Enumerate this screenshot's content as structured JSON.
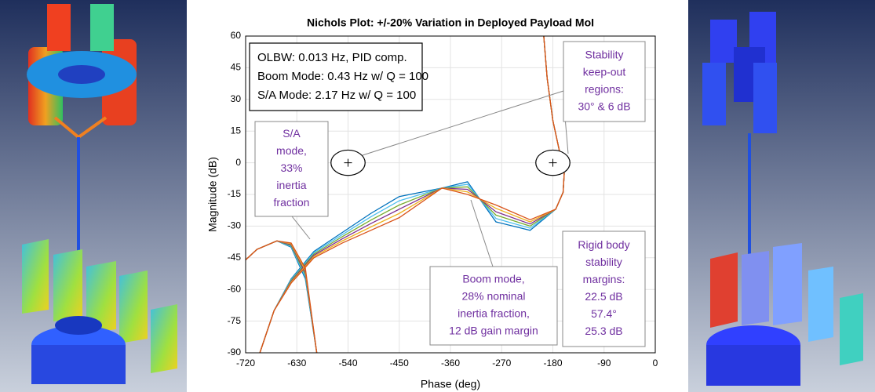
{
  "chart_data": {
    "type": "line",
    "title": "Nichols Plot: +/-20% Variation in Deployed Payload MoI",
    "xlabel": "Phase (deg)",
    "ylabel": "Magnitude (dB)",
    "xlim": [
      -720,
      0
    ],
    "xticks": [
      -720,
      -630,
      -540,
      -450,
      -360,
      -270,
      -180,
      -90,
      0
    ],
    "ylim": [
      -90,
      60
    ],
    "yticks": [
      -90,
      -75,
      -60,
      -45,
      -30,
      -15,
      0,
      15,
      30,
      45,
      60
    ],
    "grid": true,
    "series": [
      {
        "color": "#0072bd",
        "x": [
          -196,
          -190,
          -180,
          -168,
          -160,
          -162,
          -175,
          -220,
          -280,
          -330,
          -375,
          -450,
          -500,
          -550,
          -600,
          -640,
          -670,
          -695,
          null,
          -595,
          -615,
          -640,
          -665,
          -700,
          -720
        ],
        "y": [
          60,
          40,
          20,
          5,
          -5,
          -14,
          -22,
          -32,
          -28,
          -9,
          -12,
          -16,
          -24,
          -33,
          -42,
          -55,
          -70,
          -90,
          null,
          -90,
          -55,
          -40,
          -37,
          -41,
          -46
        ]
      },
      {
        "color": "#4dbeee",
        "x": [
          -196,
          -190,
          -180,
          -168,
          -160,
          -162,
          -175,
          -220,
          -280,
          -330,
          -375,
          -450,
          -500,
          -550,
          -600,
          -640,
          -670,
          -695,
          null,
          -595,
          -615,
          -640,
          -665,
          -700,
          -720
        ],
        "y": [
          60,
          40,
          20,
          5,
          -5,
          -14,
          -22,
          -31,
          -26.4,
          -10.2,
          -12,
          -18,
          -25.6,
          -34,
          -42.6,
          -55.4,
          -70,
          -90,
          null,
          -90,
          -54,
          -39.6,
          -37,
          -41,
          -46
        ]
      },
      {
        "color": "#77ac30",
        "x": [
          -196,
          -190,
          -180,
          -168,
          -160,
          -162,
          -175,
          -220,
          -280,
          -330,
          -375,
          -450,
          -500,
          -550,
          -600,
          -640,
          -670,
          -695,
          null,
          -595,
          -615,
          -640,
          -665,
          -700,
          -720
        ],
        "y": [
          60,
          40,
          20,
          5,
          -5,
          -14,
          -22,
          -30,
          -24.8,
          -11.4,
          -12,
          -20,
          -27.2,
          -35,
          -43.2,
          -55.8,
          -70,
          -90,
          null,
          -90,
          -53,
          -39.2,
          -37,
          -41,
          -46
        ]
      },
      {
        "color": "#7e2f8e",
        "x": [
          -196,
          -190,
          -180,
          -168,
          -160,
          -162,
          -175,
          -220,
          -280,
          -330,
          -375,
          -450,
          -500,
          -550,
          -600,
          -640,
          -670,
          -695,
          null,
          -595,
          -615,
          -640,
          -665,
          -700,
          -720
        ],
        "y": [
          60,
          40,
          20,
          5,
          -5,
          -14,
          -22,
          -29,
          -23.2,
          -12.6,
          -12,
          -22,
          -28.8,
          -36,
          -43.8,
          -56.2,
          -70,
          -90,
          null,
          -90,
          -52,
          -38.8,
          -37,
          -41,
          -46
        ]
      },
      {
        "color": "#edb120",
        "x": [
          -196,
          -190,
          -180,
          -168,
          -160,
          -162,
          -175,
          -220,
          -280,
          -330,
          -375,
          -450,
          -500,
          -550,
          -600,
          -640,
          -670,
          -695,
          null,
          -595,
          -615,
          -640,
          -665,
          -700,
          -720
        ],
        "y": [
          60,
          40,
          20,
          5,
          -5,
          -14,
          -22,
          -28,
          -21.6,
          -13.8,
          -12,
          -24,
          -30.4,
          -37,
          -44.4,
          -56.6,
          -70,
          -90,
          null,
          -90,
          -51,
          -38.4,
          -37,
          -41,
          -46
        ]
      },
      {
        "color": "#d95319",
        "x": [
          -196,
          -190,
          -180,
          -168,
          -160,
          -162,
          -175,
          -220,
          -280,
          -330,
          -375,
          -450,
          -500,
          -550,
          -600,
          -640,
          -670,
          -695,
          null,
          -595,
          -615,
          -640,
          -665,
          -700,
          -720
        ],
        "y": [
          60,
          40,
          20,
          5,
          -5,
          -14,
          -22,
          -27,
          -20,
          -15,
          -12,
          -26,
          -32,
          -38,
          -45,
          -57,
          -70,
          -90,
          null,
          -90,
          -50,
          -38,
          -37,
          -41,
          -46
        ]
      }
    ],
    "keep_out": {
      "phase": [
        -540,
        -180
      ],
      "magnitude": [
        0,
        0
      ],
      "phase_margin": 30,
      "gain_margin": 6
    },
    "annotations": [
      [
        "OLBW: 0.013 Hz, PID comp.",
        "Boom Mode: 0.43 Hz w/ Q = 100",
        "S/A Mode: 2.17 Hz w/ Q = 100"
      ],
      [
        "Stability",
        "keep-out",
        "regions:",
        "30° & 6 dB"
      ],
      [
        "S/A",
        "mode,",
        "33%",
        "inertia",
        "fraction"
      ],
      [
        "Boom mode,",
        "28% nominal",
        "inertia fraction,",
        "12 dB gain margin"
      ],
      [
        "Rigid body",
        "stability",
        "margins:",
        "22.5 dB",
        "57.4°",
        "25.3 dB"
      ]
    ]
  }
}
